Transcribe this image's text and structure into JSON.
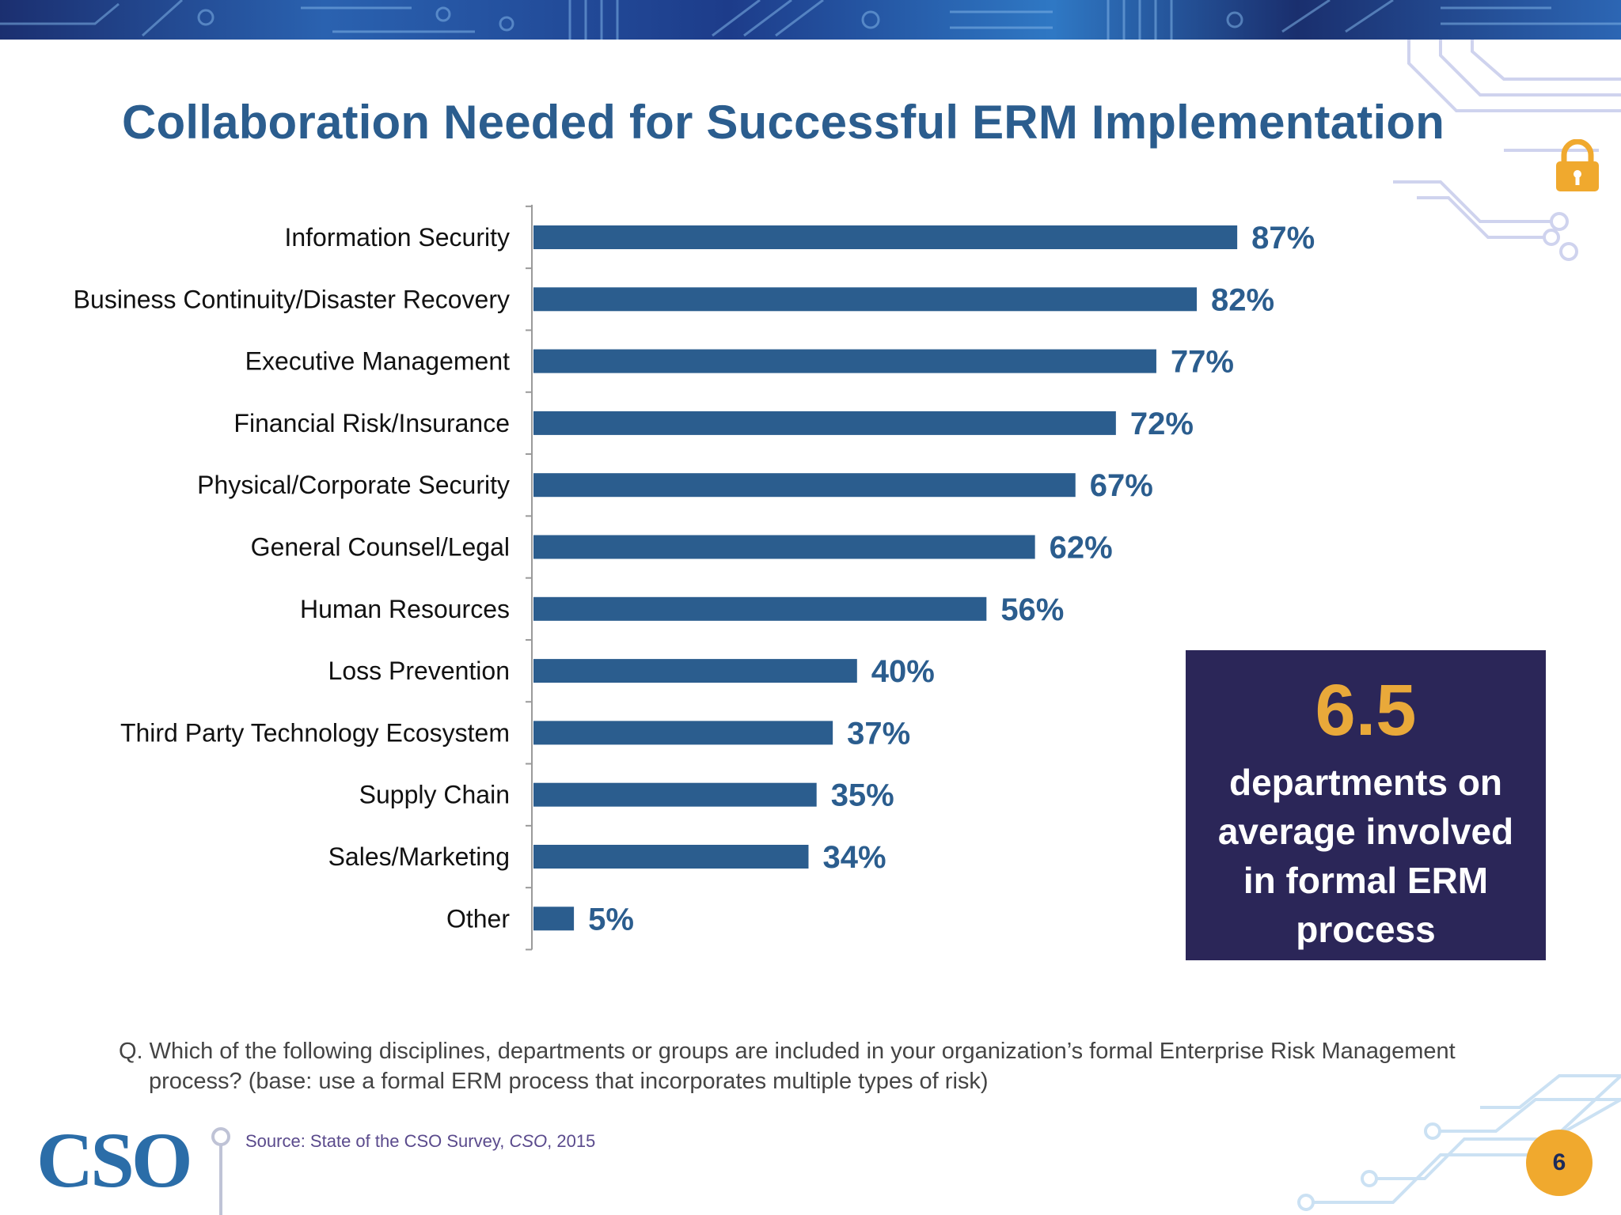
{
  "title": "Collaboration Needed for Successful ERM Implementation",
  "chart_data": {
    "type": "bar",
    "orientation": "horizontal",
    "categories": [
      "Information Security",
      "Business Continuity/Disaster Recovery",
      "Executive Management",
      "Financial Risk/Insurance",
      "Physical/Corporate Security",
      "General Counsel/Legal",
      "Human Resources",
      "Loss Prevention",
      "Third Party Technology Ecosystem",
      "Supply Chain",
      "Sales/Marketing",
      "Other"
    ],
    "values": [
      87,
      82,
      77,
      72,
      67,
      62,
      56,
      40,
      37,
      35,
      34,
      5
    ],
    "value_labels": [
      "87%",
      "82%",
      "77%",
      "72%",
      "67%",
      "62%",
      "56%",
      "40%",
      "37%",
      "35%",
      "34%",
      "5%"
    ],
    "unit": "%",
    "xlim": [
      0,
      100
    ],
    "grid": false,
    "legend": "none",
    "bar_color": "#2b5d8e",
    "label_color": "#2b5d8e"
  },
  "callout": {
    "number": "6.5",
    "text": "departments on average involved in formal ERM process"
  },
  "question": "Q. Which of the following disciplines, departments or groups are included in your organization’s formal Enterprise Risk Management process? (base: use a formal ERM process that incorporates multiple types of risk)",
  "footer": {
    "logo": "CSO",
    "source_prefix": "Source: State of the CSO Survey,",
    "source_publication": "CSO",
    "source_suffix": ", 2015",
    "page_number": "6"
  },
  "colors": {
    "title": "#2b5d8e",
    "callout_bg": "#2b2658",
    "callout_number": "#e9a93a",
    "badge": "#f0a92e",
    "logo": "#2b6da8"
  },
  "icons": [
    "lock-icon",
    "circuit-decoration"
  ]
}
